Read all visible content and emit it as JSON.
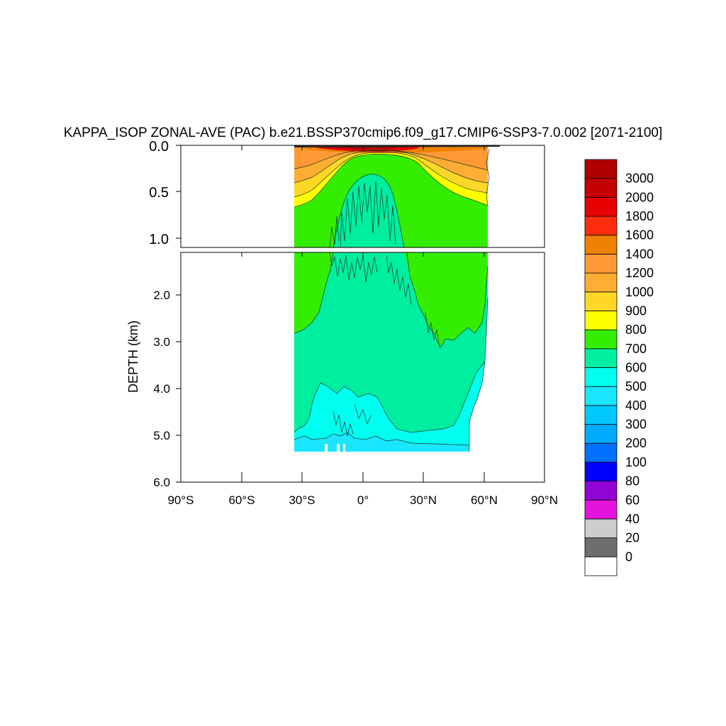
{
  "chart_data": {
    "type": "contour",
    "title": "KAPPA_ISOP ZONAL-AVE (PAC) b.e21.BSSP370cmip6.f09_g17.CMIP6-SSP3-7.0.002 [2071-2100]",
    "ylabel": "DEPTH (km)",
    "xlabel": "",
    "x_ticks": [
      "90°S",
      "60°S",
      "30°S",
      "0°",
      "30°N",
      "60°N",
      "90°N"
    ],
    "x_tick_values": [
      -90,
      -60,
      -30,
      0,
      30,
      60,
      90
    ],
    "xlim": [
      -90,
      90
    ],
    "upper_panel": {
      "ylim": [
        0,
        1.1
      ],
      "y_ticks": [
        "0.0",
        "0.5",
        "1.0"
      ],
      "y_tick_values": [
        0,
        0.5,
        1.0
      ]
    },
    "lower_panel": {
      "ylim": [
        1.1,
        6.0
      ],
      "y_ticks": [
        "2.0",
        "3.0",
        "4.0",
        "5.0",
        "6.0"
      ],
      "y_tick_values": [
        2,
        3,
        4,
        5,
        6
      ]
    },
    "data_extent": {
      "lat_min": -34,
      "lat_max": 62,
      "max_depth": 5.37
    },
    "colorbar": {
      "labels": [
        "0",
        "20",
        "40",
        "60",
        "80",
        "100",
        "200",
        "300",
        "400",
        "500",
        "600",
        "700",
        "800",
        "900",
        "1000",
        "1200",
        "1400",
        "1600",
        "1800",
        "2000",
        "3000"
      ],
      "colors": [
        "#ffffff",
        "#6e6e6e",
        "#cdcdcd",
        "#e513de",
        "#9104d6",
        "#0000ff",
        "#0070ff",
        "#00aaff",
        "#00c8ff",
        "#1ae6ff",
        "#00ffef",
        "#00eea0",
        "#33ee00",
        "#ffff00",
        "#ffd726",
        "#ffad33",
        "#ff9933",
        "#f08000",
        "#ff2d0f",
        "#e60000",
        "#c40000",
        "#b00000"
      ]
    },
    "fields": [
      {
        "level": "600",
        "region": "deep ocean (1.1–5.2 km), most of basin"
      },
      {
        "level": "500",
        "region": "bottom layer 4–5.4 km, south and central"
      },
      {
        "level": "700",
        "region": "intermediate 0.4–2.5 km, north and south flanks"
      },
      {
        "level": "800",
        "region": "near 0.5 km, subtropical bands"
      },
      {
        "level": "1000",
        "region": "upper 0.1–0.5 km"
      },
      {
        "level": "2000",
        "region": "surface tropics 0–0.15 km"
      }
    ]
  }
}
